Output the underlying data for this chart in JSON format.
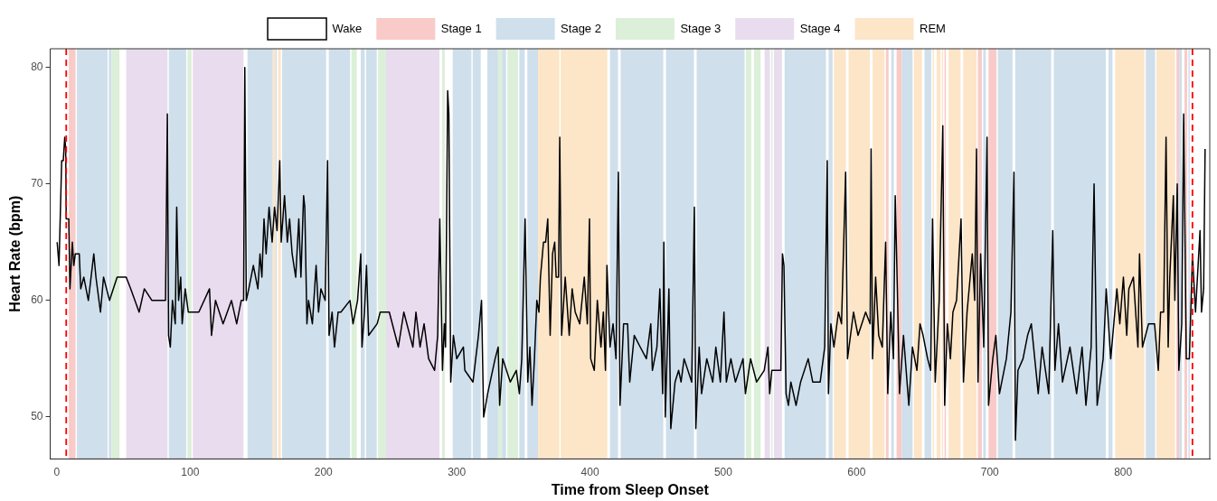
{
  "chart_data": {
    "type": "line",
    "xlabel": "Time from Sleep Onset",
    "ylabel": "Heart Rate (bpm)",
    "xlim": [
      -5,
      865
    ],
    "xticks": [
      0,
      100,
      200,
      300,
      400,
      500,
      600,
      700,
      800
    ],
    "ylim": [
      46.4,
      81.6
    ],
    "yticks": [
      50,
      60,
      70,
      80
    ],
    "grid": false,
    "legend": "top",
    "marker": "none",
    "line_style": "solid",
    "x": [
      0.2,
      1.6,
      3.6,
      4.8,
      5.9,
      6.6,
      7,
      8.9,
      9.8,
      11.6,
      12.7,
      13.8,
      16.8,
      17.9,
      20.2,
      23.6,
      27.7,
      29.3,
      32.7,
      35,
      39.5,
      45.2,
      52,
      55.4,
      61.7,
      65.6,
      71.3,
      79.2,
      81.5,
      82.9,
      83.8,
      85.1,
      86.7,
      88.8,
      89.9,
      91.3,
      92.9,
      94,
      96.3,
      98.6,
      106.5,
      114.5,
      116,
      119,
      124.7,
      131,
      134.9,
      138.3,
      140.1,
      141,
      142.1,
      144,
      147.4,
      150.8,
      152.4,
      153.8,
      155.4,
      157,
      159.2,
      161.5,
      163.3,
      165.2,
      167.2,
      168.3,
      170.8,
      172.9,
      174.6,
      176.5,
      179.2,
      181.5,
      183.1,
      185.1,
      186,
      187.6,
      188.8,
      191.7,
      194.5,
      196.3,
      198.1,
      201.3,
      203.1,
      204.2,
      206.5,
      208.3,
      211,
      213.1,
      219.9,
      222.2,
      225.6,
      228,
      228.9,
      230.8,
      232.3,
      233.9,
      240.3,
      242.6,
      249.4,
      256.2,
      260.3,
      267.1,
      269.4,
      272.5,
      275.5,
      278.9,
      283.4,
      285.7,
      287.3,
      289.3,
      290.7,
      291.6,
      293.2,
      294.1,
      295.5,
      297.5,
      300,
      305,
      306.1,
      312.2,
      316.3,
      318.6,
      320.2,
      323.2,
      328.8,
      331.1,
      332.2,
      334.5,
      340.2,
      344.7,
      347,
      348.8,
      351.3,
      353.3,
      354.9,
      356.5,
      358.3,
      360.1,
      361.7,
      362.8,
      365.1,
      366.7,
      368.3,
      370.1,
      371.9,
      373.5,
      374.6,
      376.4,
      377.3,
      378.7,
      381.4,
      384.4,
      386.6,
      388.9,
      392.3,
      395.7,
      398,
      399.6,
      400.5,
      403.2,
      405.5,
      408.2,
      410,
      411.6,
      412.7,
      415,
      417.3,
      419.5,
      421.3,
      422.5,
      425.2,
      428.2,
      429.8,
      433.2,
      437.7,
      442.3,
      445.6,
      446.8,
      450.2,
      452.4,
      454.5,
      455.4,
      456.5,
      459.2,
      460.6,
      463.8,
      466.5,
      468.3,
      470.6,
      476.3,
      478.3,
      479.4,
      481.9,
      483.7,
      487.6,
      492.1,
      494.4,
      497.8,
      500.5,
      502.3,
      505.7,
      509.1,
      514.8,
      516.6,
      520.5,
      525,
      530.7,
      533.5,
      534.8,
      536.4,
      543.2,
      544.4,
      545.5,
      547.1,
      548.9,
      550.7,
      554.6,
      558,
      563.7,
      567.1,
      572.7,
      576.1,
      578,
      578.9,
      580.7,
      583,
      586.4,
      588.7,
      591.8,
      593.2,
      597.7,
      601.1,
      606.8,
      610.2,
      610.9,
      612,
      614.3,
      616.6,
      619.3,
      621.8,
      623.4,
      625.6,
      627.7,
      629,
      630.6,
      632.2,
      635.2,
      639.2,
      641.9,
      645.3,
      647.6,
      649.9,
      653.3,
      655.6,
      657,
      659,
      662,
      664.7,
      666.1,
      668.1,
      670.4,
      672.3,
      675,
      678.4,
      680.2,
      682.9,
      686.8,
      688.6,
      690,
      691.1,
      693.1,
      695.4,
      697.9,
      699,
      702.2,
      704.5,
      707.2,
      712.4,
      715.8,
      718.1,
      719.2,
      721.1,
      724.9,
      728.3,
      731.1,
      736.3,
      739.2,
      744.2,
      747.2,
      748.8,
      751.5,
      754.5,
      760.1,
      765.1,
      769.2,
      772.1,
      776,
      778.2,
      780.5,
      782.8,
      785,
      787.3,
      790.7,
      795.3,
      797.5,
      800.2,
      802.7,
      804.3,
      807.7,
      811.1,
      812.3,
      814.5,
      819.1,
      823.6,
      826.4,
      828.1,
      830.4,
      832.2,
      833.8,
      835,
      837.7,
      838.8,
      840.6,
      841.8,
      844,
      845.4,
      847.4,
      849.7,
      852,
      854.3,
      857.7,
      858.8,
      860.4,
      861.5
    ],
    "series": [
      {
        "color": "#000000",
        "values": [
          65,
          63,
          72,
          72,
          74,
          73,
          67,
          67,
          61,
          65,
          63,
          64,
          64,
          61,
          62,
          60,
          64,
          62,
          59,
          62,
          60,
          62,
          62,
          61,
          59,
          61,
          60,
          60,
          60,
          76,
          57,
          56,
          60,
          58,
          68,
          60,
          62,
          58,
          61,
          59,
          59,
          61,
          57,
          60,
          58,
          60,
          58,
          60,
          60,
          80,
          60,
          61,
          63,
          61,
          64,
          62,
          67,
          64,
          68,
          65,
          68,
          66,
          72,
          65,
          69,
          65,
          67,
          64,
          62,
          67,
          62,
          69,
          68,
          58,
          60,
          58,
          63,
          59,
          61,
          60,
          72,
          57,
          59,
          56,
          59,
          59,
          60,
          58,
          60,
          64,
          56,
          59,
          63,
          57,
          58,
          59,
          59,
          56,
          59,
          56,
          59,
          56,
          58,
          55,
          54,
          57,
          67,
          54,
          58,
          56,
          78,
          76,
          53,
          57,
          55,
          56,
          54,
          53,
          57,
          60,
          50,
          52,
          55,
          56,
          51,
          55,
          53,
          54,
          52,
          55,
          67,
          53,
          56,
          51,
          55,
          60,
          59,
          62,
          65,
          65,
          67,
          57,
          64,
          65,
          62,
          62,
          74,
          57,
          62,
          57,
          61,
          59,
          58,
          62,
          58,
          67,
          55,
          54,
          60,
          56,
          59,
          54,
          63,
          56,
          58,
          55,
          71,
          51,
          58,
          58,
          53,
          57,
          56,
          55,
          58,
          54,
          56,
          61,
          52,
          65,
          50,
          61,
          49,
          53,
          54,
          53,
          55,
          53,
          68,
          49,
          56,
          52,
          55,
          53,
          56,
          53,
          59,
          53,
          55,
          53,
          55,
          52,
          55,
          53,
          54,
          56,
          52,
          54,
          54,
          64,
          63,
          52,
          51,
          53,
          51,
          53,
          55,
          53,
          53,
          56,
          72,
          52,
          58,
          56,
          59,
          58,
          71,
          55,
          59,
          57,
          59,
          58,
          73,
          55,
          62,
          57,
          56,
          65,
          52,
          59,
          55,
          69,
          61,
          52,
          57,
          51,
          56,
          54,
          58,
          57,
          55,
          54,
          67,
          53,
          60,
          75,
          51,
          58,
          55,
          59,
          60,
          67,
          53,
          59,
          64,
          60,
          73,
          53,
          64,
          56,
          74,
          51,
          55,
          57,
          52,
          55,
          59,
          71,
          48,
          54,
          55,
          57,
          58,
          52,
          56,
          52,
          66,
          54,
          58,
          53,
          56,
          52,
          56,
          51,
          56,
          70,
          51,
          53,
          55,
          61,
          55,
          61,
          58,
          62,
          57,
          61,
          62,
          56,
          64,
          56,
          58,
          58,
          54,
          59,
          59,
          74,
          56,
          62,
          69,
          60,
          70,
          54,
          58,
          76,
          55,
          55,
          64,
          59,
          66,
          59,
          61,
          73
        ]
      }
    ],
    "ref_lines": [
      {
        "axis": "x",
        "value": 7,
        "color": "#ff0000",
        "line_style": "dashed"
      },
      {
        "axis": "x",
        "value": 852,
        "color": "#ff0000",
        "line_style": "dashed"
      }
    ],
    "bands": [
      {
        "axis": "x",
        "from": 0,
        "to": 9,
        "label": "Wake",
        "color": "#ffffff"
      },
      {
        "axis": "x",
        "from": 9,
        "to": 14,
        "label": "Stage 1",
        "color": "#f8cbc8"
      },
      {
        "axis": "x",
        "from": 15,
        "to": 38,
        "label": "Stage 2",
        "color": "#cfdfec"
      },
      {
        "axis": "x",
        "from": 39,
        "to": 41,
        "color": "#cfdfec"
      },
      {
        "axis": "x",
        "from": 41,
        "to": 47,
        "label": "Stage 3",
        "color": "#dcefd8"
      },
      {
        "axis": "x",
        "from": 52,
        "to": 83,
        "label": "Stage 4",
        "color": "#e8dcee"
      },
      {
        "axis": "x",
        "from": 84,
        "to": 97,
        "color": "#cfdfec"
      },
      {
        "axis": "x",
        "from": 98,
        "to": 101,
        "color": "#dcefd8"
      },
      {
        "axis": "x",
        "from": 102,
        "to": 140,
        "color": "#e8dcee"
      },
      {
        "axis": "x",
        "from": 143,
        "to": 162,
        "color": "#cfdfec"
      },
      {
        "axis": "x",
        "from": 162,
        "to": 164,
        "label": "REM",
        "color": "#fde5c8"
      },
      {
        "axis": "x",
        "from": 164,
        "to": 165,
        "color": "#cfdfec"
      },
      {
        "axis": "x",
        "from": 166,
        "to": 168,
        "color": "#fde5c8"
      },
      {
        "axis": "x",
        "from": 169,
        "to": 202,
        "color": "#cfdfec"
      },
      {
        "axis": "x",
        "from": 204,
        "to": 220,
        "color": "#cfdfec"
      },
      {
        "axis": "x",
        "from": 221,
        "to": 225,
        "color": "#dcefd8"
      },
      {
        "axis": "x",
        "from": 228,
        "to": 231,
        "color": "#cfdfec"
      },
      {
        "axis": "x",
        "from": 232,
        "to": 240,
        "color": "#cfdfec"
      },
      {
        "axis": "x",
        "from": 241,
        "to": 247,
        "color": "#dcefd8"
      },
      {
        "axis": "x",
        "from": 247,
        "to": 287,
        "color": "#e8dcee"
      },
      {
        "axis": "x",
        "from": 289,
        "to": 291,
        "color": "#dcefd8"
      },
      {
        "axis": "x",
        "from": 297,
        "to": 311,
        "color": "#cfdfec"
      },
      {
        "axis": "x",
        "from": 312,
        "to": 318,
        "color": "#cfdfec"
      },
      {
        "axis": "x",
        "from": 323,
        "to": 331,
        "color": "#cfdfec"
      },
      {
        "axis": "x",
        "from": 331,
        "to": 334,
        "color": "#dcefd8"
      },
      {
        "axis": "x",
        "from": 334,
        "to": 337,
        "color": "#cfdfec"
      },
      {
        "axis": "x",
        "from": 338,
        "to": 346,
        "color": "#dcefd8"
      },
      {
        "axis": "x",
        "from": 347,
        "to": 351,
        "color": "#cfdfec"
      },
      {
        "axis": "x",
        "from": 353,
        "to": 361,
        "color": "#cfdfec"
      },
      {
        "axis": "x",
        "from": 361,
        "to": 377,
        "color": "#fde5c8"
      },
      {
        "axis": "x",
        "from": 378,
        "to": 413,
        "color": "#fde5c8"
      },
      {
        "axis": "x",
        "from": 415,
        "to": 421,
        "color": "#cfdfec"
      },
      {
        "axis": "x",
        "from": 423,
        "to": 455,
        "color": "#cfdfec"
      },
      {
        "axis": "x",
        "from": 457,
        "to": 478,
        "color": "#cfdfec"
      },
      {
        "axis": "x",
        "from": 480,
        "to": 516,
        "color": "#cfdfec"
      },
      {
        "axis": "x",
        "from": 517,
        "to": 521,
        "color": "#dcefd8"
      },
      {
        "axis": "x",
        "from": 523,
        "to": 528,
        "color": "#dcefd8"
      },
      {
        "axis": "x",
        "from": 531,
        "to": 535,
        "color": "#e8dcee"
      },
      {
        "axis": "x",
        "from": 536,
        "to": 537,
        "color": "#dcefd8"
      },
      {
        "axis": "x",
        "from": 538,
        "to": 544,
        "color": "#e8dcee"
      },
      {
        "axis": "x",
        "from": 546,
        "to": 577,
        "color": "#cfdfec"
      },
      {
        "axis": "x",
        "from": 579,
        "to": 582,
        "color": "#cfdfec"
      },
      {
        "axis": "x",
        "from": 583,
        "to": 592,
        "color": "#fde5c8"
      },
      {
        "axis": "x",
        "from": 594,
        "to": 610,
        "color": "#fde5c8"
      },
      {
        "axis": "x",
        "from": 612,
        "to": 621,
        "color": "#fde5c8"
      },
      {
        "axis": "x",
        "from": 622,
        "to": 624,
        "color": "#f8cbc8"
      },
      {
        "axis": "x",
        "from": 626,
        "to": 628,
        "color": "#cfdfec"
      },
      {
        "axis": "x",
        "from": 630,
        "to": 634,
        "color": "#f8cbc8"
      },
      {
        "axis": "x",
        "from": 634,
        "to": 642,
        "color": "#cfdfec"
      },
      {
        "axis": "x",
        "from": 643,
        "to": 649,
        "color": "#fde5c8"
      },
      {
        "axis": "x",
        "from": 651,
        "to": 656,
        "color": "#cfdfec"
      },
      {
        "axis": "x",
        "from": 657,
        "to": 658,
        "color": "#fde5c8"
      },
      {
        "axis": "x",
        "from": 660,
        "to": 663,
        "color": "#fde5c8"
      },
      {
        "axis": "x",
        "from": 664,
        "to": 665,
        "color": "#fde5c8"
      },
      {
        "axis": "x",
        "from": 666,
        "to": 667,
        "color": "#f8cbc8"
      },
      {
        "axis": "x",
        "from": 669,
        "to": 678,
        "color": "#fde5c8"
      },
      {
        "axis": "x",
        "from": 680,
        "to": 690,
        "color": "#fde5c8"
      },
      {
        "axis": "x",
        "from": 691,
        "to": 694,
        "color": "#f8cbc8"
      },
      {
        "axis": "x",
        "from": 695,
        "to": 697,
        "color": "#cfdfec"
      },
      {
        "axis": "x",
        "from": 699,
        "to": 705,
        "color": "#f8cbc8"
      },
      {
        "axis": "x",
        "from": 706,
        "to": 717,
        "color": "#cfdfec"
      },
      {
        "axis": "x",
        "from": 719,
        "to": 746,
        "color": "#cfdfec"
      },
      {
        "axis": "x",
        "from": 748,
        "to": 787,
        "color": "#cfdfec"
      },
      {
        "axis": "x",
        "from": 789,
        "to": 792,
        "color": "#cfdfec"
      },
      {
        "axis": "x",
        "from": 794,
        "to": 816,
        "color": "#fde5c8"
      },
      {
        "axis": "x",
        "from": 817,
        "to": 824,
        "color": "#cfdfec"
      },
      {
        "axis": "x",
        "from": 825,
        "to": 839,
        "color": "#fde5c8"
      },
      {
        "axis": "x",
        "from": 840,
        "to": 842,
        "color": "#f8cbc8"
      },
      {
        "axis": "x",
        "from": 842,
        "to": 844,
        "color": "#cfdfec"
      },
      {
        "axis": "x",
        "from": 846,
        "to": 848,
        "color": "#f8cbc8"
      },
      {
        "axis": "x",
        "from": 849,
        "to": 850,
        "color": "#cfdfec"
      },
      {
        "axis": "x",
        "from": 852,
        "to": 865,
        "color": "#ffffff"
      }
    ]
  }
}
